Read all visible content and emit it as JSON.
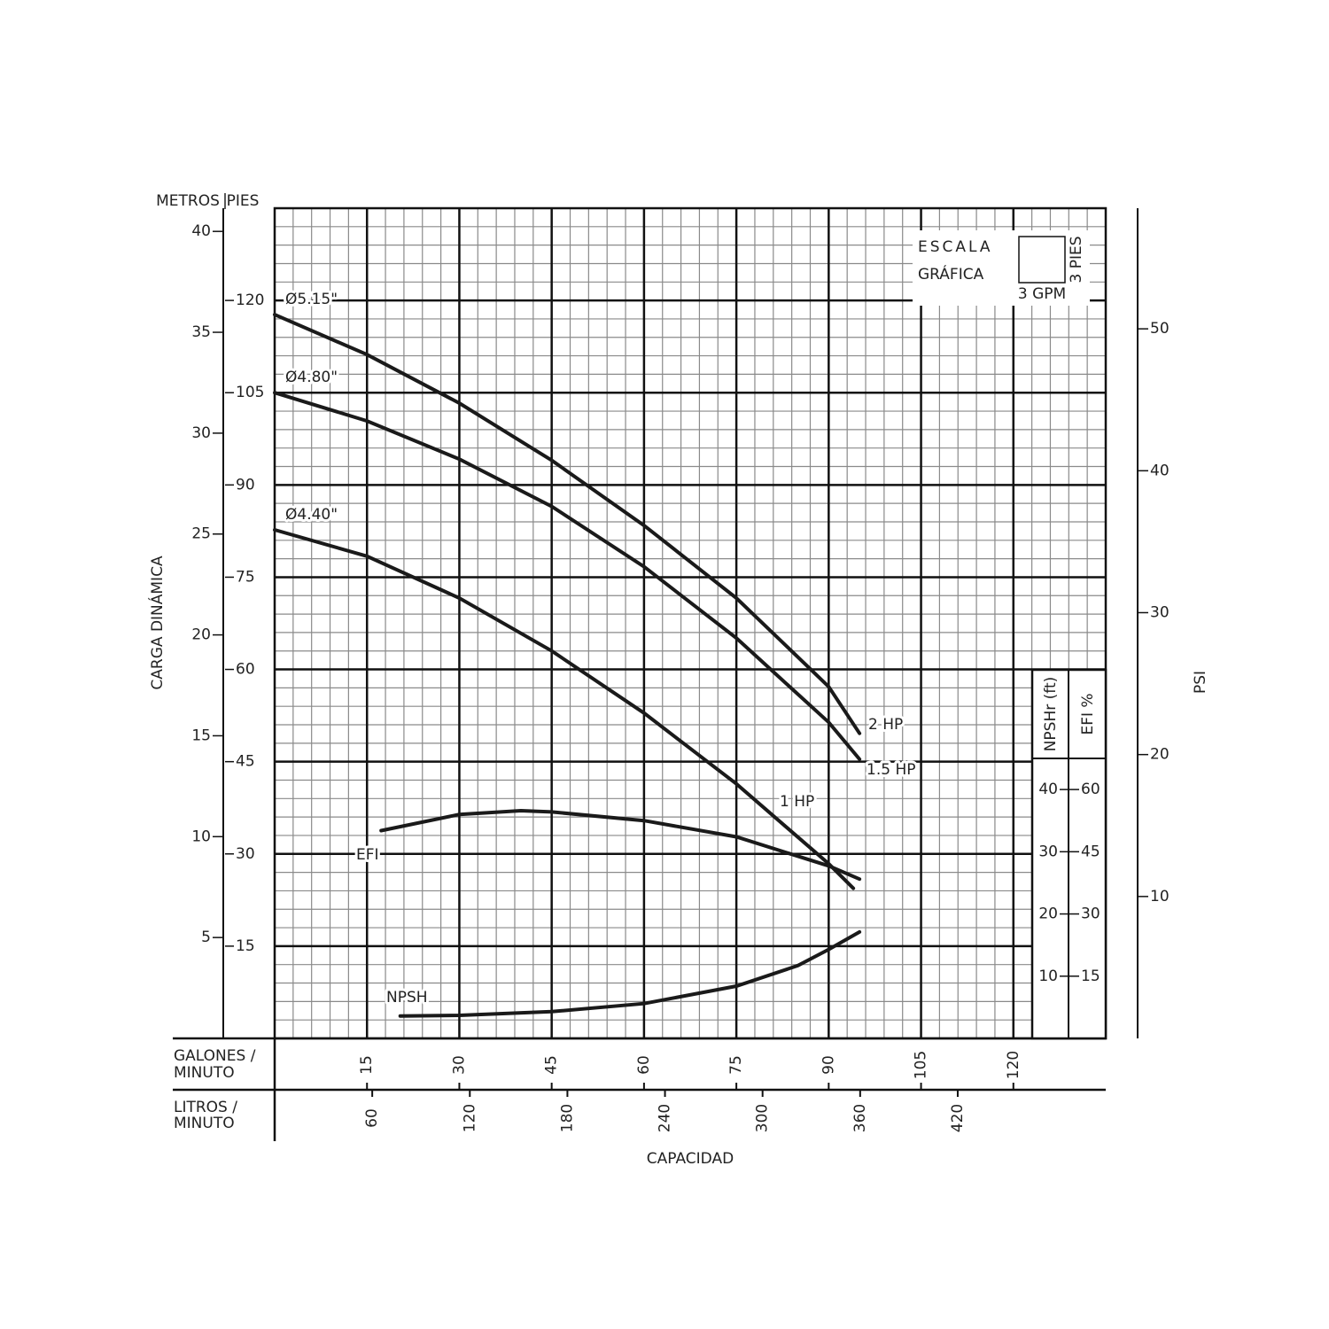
{
  "chart_data": {
    "type": "line",
    "x_title": "CAPACIDAD",
    "y_title": "CARGA DINÁMICA",
    "y_unit": "PIES",
    "ym_unit": "METROS",
    "y2_title": "PSI",
    "x_unit": [
      "GALONES /",
      "MINUTO"
    ],
    "x2_unit": [
      "LITROS /",
      "MINUTO"
    ],
    "xlim": [
      0,
      135
    ],
    "xticks": [
      15,
      30,
      45,
      60,
      75,
      90,
      105,
      120
    ],
    "x2lim": [
      0,
      511
    ],
    "x2ticks": [
      60,
      120,
      180,
      240,
      300,
      360,
      420
    ],
    "ylim": [
      0,
      135
    ],
    "yticks": [
      15,
      30,
      45,
      60,
      75,
      90,
      105,
      120
    ],
    "ymlim": [
      0,
      41.15
    ],
    "ymticks": [
      5,
      10,
      15,
      20,
      25,
      30,
      35,
      40
    ],
    "y2lim": [
      0,
      58.5
    ],
    "y2ticks": [
      10,
      20,
      30,
      40,
      50
    ],
    "npsh_title": "NPSHr (ft)",
    "npsh_lim": [
      0,
      45
    ],
    "npsh_ticks": [
      10,
      20,
      30,
      40
    ],
    "efi_title": "EFI %",
    "efi_lim": [
      0,
      67.5
    ],
    "efi_ticks": [
      15,
      30,
      45,
      60
    ],
    "grid": true,
    "minor_grid": 3,
    "scale_title": [
      "ESCALA",
      "GRÁFICA"
    ],
    "scale_x_label": "3 GPM",
    "scale_y_label": "3 PIES",
    "series": [
      {
        "name": "Ø5.15\"",
        "hp": "2 HP",
        "color": "#1a1a1a",
        "axis": "y",
        "x": [
          0,
          15,
          30,
          45,
          60,
          75,
          90,
          95
        ],
        "values": [
          117.7,
          111.2,
          103.3,
          94,
          83.4,
          71.6,
          57.2,
          49.6
        ]
      },
      {
        "name": "Ø4.80\"",
        "hp": "1.5 HP",
        "color": "#1a1a1a",
        "axis": "y",
        "x": [
          0,
          15,
          30,
          45,
          60,
          75,
          90,
          95
        ],
        "values": [
          105,
          100.4,
          94.2,
          86.5,
          76.7,
          65.1,
          51.4,
          45.4
        ]
      },
      {
        "name": "Ø4.40\"",
        "hp": "1 HP",
        "color": "#1a1a1a",
        "axis": "y",
        "x": [
          0,
          15,
          30,
          45,
          60,
          75,
          90,
          94
        ],
        "values": [
          82.7,
          78.4,
          71.6,
          63,
          52.9,
          41.4,
          28.4,
          24.4
        ]
      },
      {
        "name": "EFI",
        "color": "#1a1a1a",
        "axis": "efi",
        "x": [
          17.3,
          30,
          40,
          45,
          60,
          75,
          90,
          95
        ],
        "values": [
          50.1,
          54,
          54.9,
          54.6,
          52.5,
          48.6,
          41.6,
          38.4
        ]
      },
      {
        "name": "NPSH",
        "color": "#1a1a1a",
        "axis": "npsh",
        "x": [
          20.4,
          30,
          45,
          60,
          75,
          85,
          90,
          95
        ],
        "values": [
          3.6,
          3.7,
          4.3,
          5.6,
          8.4,
          11.7,
          14.3,
          17.1
        ]
      }
    ]
  }
}
